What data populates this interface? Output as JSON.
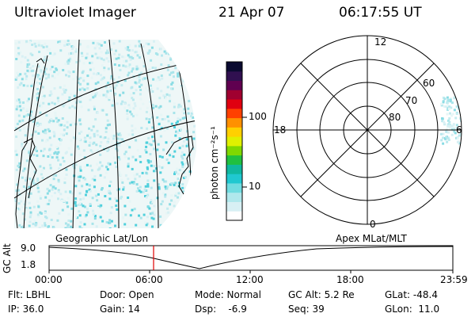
{
  "header": {
    "title": "Ultraviolet Imager",
    "date": "21 Apr 07",
    "time": "06:17:55 UT"
  },
  "colorbar": {
    "unit_label": "photon cm⁻²s⁻¹",
    "ticks": [
      "100",
      "10"
    ],
    "colors": [
      "#ffffff",
      "#d8f0f4",
      "#b0e8ec",
      "#70dce0",
      "#20c8d0",
      "#10b8a0",
      "#20c040",
      "#80d800",
      "#e0f000",
      "#ffd000",
      "#ff9000",
      "#ff4000",
      "#e00010",
      "#a00030",
      "#600050",
      "#301050",
      "#0a0a30"
    ]
  },
  "left_map": {
    "caption": "Geographic Lat/Lon"
  },
  "polar": {
    "caption": "Apex MLat/MLT",
    "mlt_labels": {
      "top": "12",
      "left": "18",
      "right": "6",
      "bottom": "0"
    },
    "lat_labels": [
      "60",
      "70",
      "80"
    ]
  },
  "timeline": {
    "ylabel": "GC Alt",
    "y_ticks": [
      "9.0",
      "1.8"
    ],
    "x_ticks": [
      "00:00",
      "06:00",
      "12:00",
      "18:00",
      "23:59"
    ],
    "current_marker_color": "#e00000"
  },
  "info": {
    "flt": "Flt: LBHL",
    "ip": "IP: 36.0",
    "door": "Door: Open",
    "gain": "Gain: 14",
    "mode": "Mode: Normal",
    "dsp": "Dsp:    -6.9",
    "gcalt": "GC Alt: 5.2 Re",
    "seq": "Seq: 39",
    "glat": "GLat: -48.4",
    "glon": "GLon:  11.0"
  }
}
